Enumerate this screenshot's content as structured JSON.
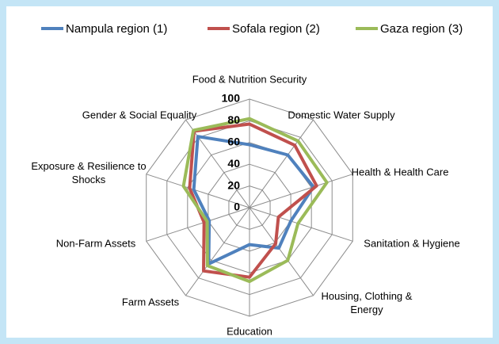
{
  "chart_data": {
    "type": "radar",
    "categories": [
      "Food & Nutrition Security",
      "Domestic Water Supply",
      "Health & Health Care",
      "Sanitation & Hygiene",
      "Housing, Clothing & Energy",
      "Education",
      "Farm Assets",
      "Non-Farm Assets",
      "Exposure & Resilience to Shocks",
      "Gender & Social Equality"
    ],
    "series": [
      {
        "name": "Nampula region (1)",
        "color": "#4f81bd",
        "values": [
          58,
          60,
          62,
          40,
          46,
          34,
          64,
          39,
          54,
          81
        ]
      },
      {
        "name": "Sofala region (2)",
        "color": "#c0504d",
        "values": [
          77,
          71,
          65,
          28,
          41,
          64,
          72,
          44,
          58,
          87
        ]
      },
      {
        "name": "Gaza region (3)",
        "color": "#9bbb59",
        "values": [
          82,
          76,
          75,
          47,
          60,
          68,
          66,
          41,
          64,
          88
        ]
      }
    ],
    "ylim": [
      0,
      100
    ],
    "yticks": [
      0,
      20,
      40,
      60,
      80,
      100
    ],
    "grid": true,
    "legend": "top"
  }
}
